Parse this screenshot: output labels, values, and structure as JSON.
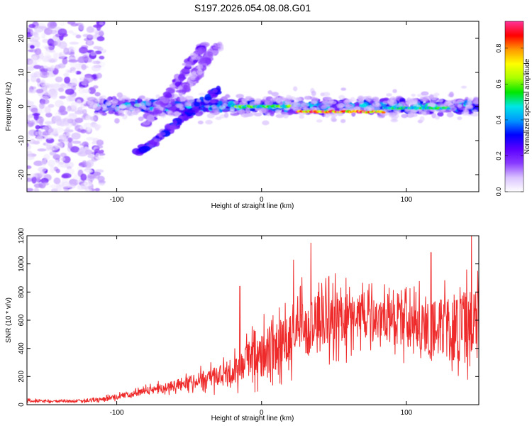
{
  "figure_title": "S197.2026.054.08.08.G01",
  "chart_data": [
    {
      "type": "heatmap",
      "name": "spectrogram",
      "xlabel": "Height of straight line (km)",
      "ylabel": "Frequency (Hz)",
      "xlim": [
        -162,
        150
      ],
      "ylim": [
        -25,
        25
      ],
      "xticks": [
        -100,
        0,
        100
      ],
      "yticks": [
        -20,
        -10,
        0,
        10,
        20
      ],
      "colorbar": {
        "label": "Normalized spectral amplitude",
        "range": [
          0,
          0.95
        ],
        "ticks": [
          0.0,
          0.2,
          0.4,
          0.6,
          0.8
        ],
        "colors": [
          "#ffffff",
          "#d9c2ff",
          "#8a3cff",
          "#5a00ff",
          "#0000ff",
          "#0096ff",
          "#00e6e6",
          "#00e600",
          "#aaff00",
          "#ffff00",
          "#ff9900",
          "#ff0000",
          "#ff3399"
        ]
      },
      "features": [
        {
          "name": "main-carrier",
          "x_range": [
            -115,
            150
          ],
          "frequency_hz": 0,
          "width_hz": 4,
          "amplitude": 0.35
        },
        {
          "name": "steady-tone",
          "x_range": [
            25,
            85
          ],
          "frequency_hz": -1.5,
          "width_hz": 1.2,
          "amplitude": 0.9
        },
        {
          "name": "steady-tone-2",
          "x_range": [
            -20,
            20
          ],
          "frequency_hz": 0,
          "width_hz": 1.2,
          "amplitude": 0.6
        },
        {
          "name": "steady-tone-3",
          "x_range": [
            85,
            130
          ],
          "frequency_hz": -0.5,
          "width_hz": 1.2,
          "amplitude": 0.55
        },
        {
          "name": "rising-branch",
          "x_from": -85,
          "f_from": -14,
          "x_to": -30,
          "f_to": 5,
          "amplitude": 0.3
        },
        {
          "name": "rising-branch-2",
          "x_from": -80,
          "f_from": -6,
          "x_to": -40,
          "f_to": 18,
          "amplitude": 0.2
        },
        {
          "name": "rising-branch-3",
          "x_from": -55,
          "f_from": 4,
          "x_to": -30,
          "f_to": 18,
          "amplitude": 0.15
        },
        {
          "name": "noise-region",
          "x_range": [
            -162,
            -110
          ],
          "frequency_range": [
            -25,
            25
          ],
          "amplitude": 0.15
        }
      ]
    },
    {
      "type": "line",
      "name": "snr",
      "xlabel": "Height of straight line (km)",
      "ylabel": "SNR (10 * v/v)",
      "xlim": [
        -162,
        150
      ],
      "ylim": [
        0,
        1200
      ],
      "xticks": [
        -100,
        0,
        100
      ],
      "yticks": [
        0,
        200,
        400,
        600,
        800,
        1000,
        1200
      ],
      "color": "#ee2a2a",
      "x": [
        -162,
        -150,
        -140,
        -130,
        -120,
        -110,
        -100,
        -90,
        -80,
        -70,
        -60,
        -50,
        -40,
        -30,
        -20,
        -10,
        0,
        10,
        20,
        30,
        40,
        50,
        60,
        70,
        80,
        90,
        100,
        110,
        120,
        130,
        140,
        150
      ],
      "values": [
        30,
        25,
        25,
        25,
        30,
        40,
        55,
        75,
        95,
        115,
        135,
        160,
        180,
        200,
        240,
        300,
        350,
        430,
        500,
        540,
        570,
        590,
        600,
        620,
        610,
        590,
        560,
        520,
        520,
        540,
        560,
        560
      ],
      "spread": [
        20,
        15,
        15,
        15,
        20,
        25,
        30,
        40,
        50,
        60,
        70,
        90,
        110,
        130,
        170,
        220,
        280,
        330,
        360,
        380,
        380,
        350,
        300,
        260,
        250,
        260,
        300,
        360,
        400,
        420,
        450,
        450
      ],
      "peaks": [
        {
          "x": -15,
          "y": 840
        },
        {
          "x": 22,
          "y": 1030
        },
        {
          "x": 34,
          "y": 1150
        },
        {
          "x": 117,
          "y": 1080
        },
        {
          "x": 145,
          "y": 1200
        }
      ]
    }
  ]
}
